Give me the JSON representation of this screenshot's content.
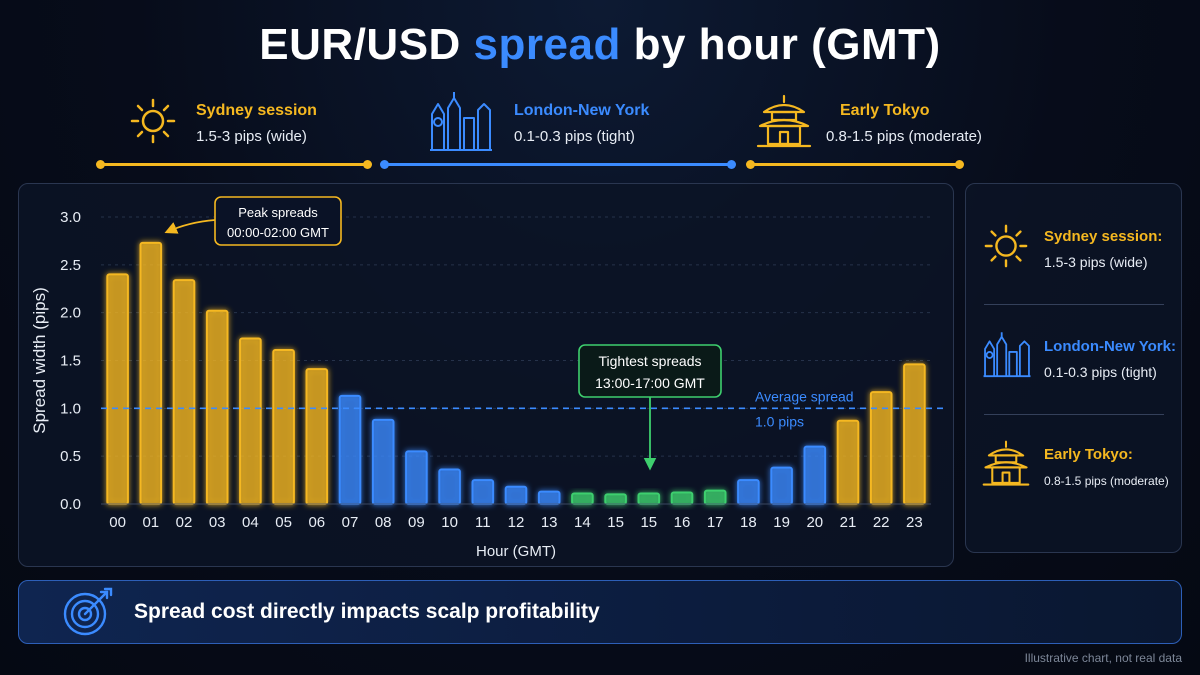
{
  "title": {
    "prefix": "EUR/USD ",
    "accent": "spread",
    "suffix": " by hour (GMT)"
  },
  "sessions": [
    {
      "name": "Sydney session",
      "desc": "1.5-3 pips (wide)",
      "color": "#f5b820",
      "icon": "sun-icon"
    },
    {
      "name": "London-New York",
      "desc": "0.1-0.3 pips (tight)",
      "color": "#3b8bff",
      "icon": "city-skyline-icon"
    },
    {
      "name": "Early Tokyo",
      "desc": "0.8-1.5 pips (moderate)",
      "color": "#f5b820",
      "icon": "pagoda-icon"
    }
  ],
  "legend": [
    {
      "name": "Sydney session:",
      "desc": "1.5-3 pips (wide)",
      "color": "#f5b820",
      "icon": "sun-icon"
    },
    {
      "name": "London-New York:",
      "desc": "0.1-0.3 pips (tight)",
      "color": "#3b8bff",
      "icon": "city-skyline-icon"
    },
    {
      "name": "Early Tokyo:",
      "desc": "0.8-1.5 pips (moderate)",
      "color": "#f5b820",
      "icon": "pagoda-icon"
    }
  ],
  "chart_data": {
    "type": "bar",
    "xlabel": "Hour (GMT)",
    "ylabel": "Spread width (pips)",
    "ylim": [
      0,
      3
    ],
    "yticks": [
      "0.0",
      "0.5",
      "1.0",
      "1.5",
      "2.0",
      "2.5",
      "3.0"
    ],
    "categories": [
      "00",
      "01",
      "02",
      "03",
      "04",
      "05",
      "06",
      "07",
      "08",
      "09",
      "10",
      "11",
      "12",
      "13",
      "14",
      "15",
      "15",
      "16",
      "17",
      "18",
      "19",
      "20",
      "21",
      "22",
      "23"
    ],
    "values": [
      2.4,
      2.73,
      2.34,
      2.02,
      1.73,
      1.61,
      1.41,
      1.13,
      0.88,
      0.55,
      0.36,
      0.25,
      0.18,
      0.13,
      0.11,
      0.1,
      0.11,
      0.12,
      0.14,
      0.25,
      0.38,
      0.6,
      0.87,
      1.17,
      1.46
    ],
    "bar_colors": [
      "gold",
      "gold",
      "gold",
      "gold",
      "gold",
      "gold",
      "gold",
      "blue",
      "blue",
      "blue",
      "blue",
      "blue",
      "blue",
      "blue",
      "green",
      "green",
      "green",
      "green",
      "green",
      "blue",
      "blue",
      "blue",
      "gold",
      "gold",
      "gold"
    ],
    "palette": {
      "gold": "#f5b820",
      "blue": "#3b8bff",
      "green": "#3ecf6e"
    },
    "average_line": {
      "value": 1.0,
      "label": "Average spread",
      "sublabel": "1.0 pips"
    },
    "annotations": [
      {
        "line1": "Peak spreads",
        "line2": "00:00-02:00 GMT",
        "color": "#f5b820"
      },
      {
        "line1": "Tightest spreads",
        "line2": "13:00-17:00 GMT",
        "color": "#3ecf6e"
      }
    ],
    "grid": true
  },
  "footer": {
    "text": "Spread cost directly impacts scalp profitability",
    "icon": "target-icon"
  },
  "note": "Illustrative chart, not real data"
}
